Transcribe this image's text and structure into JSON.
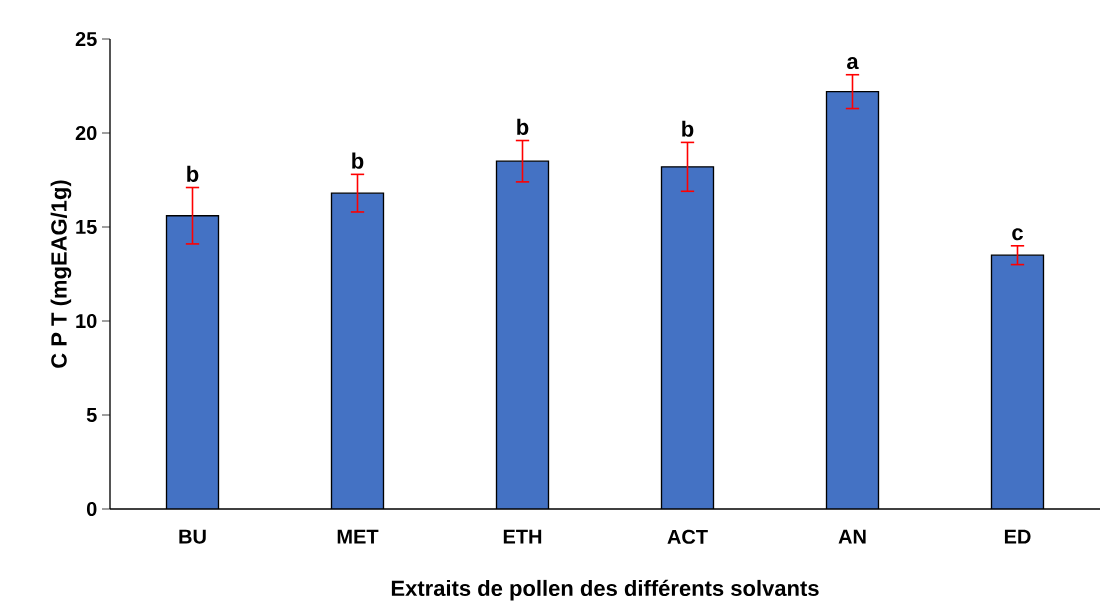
{
  "chart_data": {
    "type": "bar",
    "xlabel": "Extraits de pollen des différents solvants",
    "ylabel": "C P T (mgEAG/1g)",
    "categories": [
      "BU",
      "MET",
      "ETH",
      "ACT",
      "AN",
      "ED"
    ],
    "values": [
      15.6,
      16.8,
      18.5,
      18.2,
      22.2,
      13.5
    ],
    "errors": [
      1.5,
      1.0,
      1.1,
      1.3,
      0.9,
      0.5
    ],
    "color": "#4472c4",
    "ylim": [
      0,
      25
    ],
    "yticks": [
      0,
      5,
      10,
      15,
      20,
      25
    ],
    "annotations": [
      {
        "text": "b",
        "x": "BU",
        "y": 17.1
      },
      {
        "text": "b",
        "x": "MET",
        "y": 17.8
      },
      {
        "text": "b",
        "x": "ETH",
        "y": 19.6
      },
      {
        "text": "b",
        "x": "ACT",
        "y": 19.5
      },
      {
        "text": "a",
        "x": "AN",
        "y": 23.1
      },
      {
        "text": "c",
        "x": "ED",
        "y": 14.0
      }
    ]
  }
}
